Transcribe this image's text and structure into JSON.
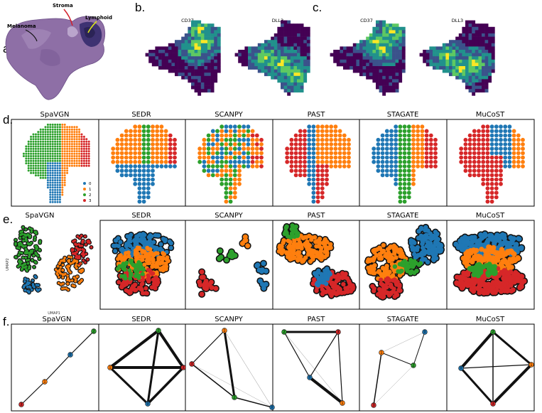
{
  "panel_labels": {
    "a": "a.",
    "b": "b.",
    "c": "c.",
    "d": "d.",
    "e": "e.",
    "f": "f."
  },
  "panel_a": {
    "annotations": {
      "melanoma": "Melanoma",
      "stroma": "Stroma",
      "lymphoid": "Lymphoid"
    },
    "colors": {
      "tissue": "#8e6fa6",
      "tissue_light": "#b9a2c9",
      "lymphoid": "#3e3272",
      "stroma_arrow": "#d21f2b",
      "lymphoid_arrow": "#d9e21a",
      "melanoma_arrow": "#111111"
    }
  },
  "panel_b": {
    "genes": [
      "CD37",
      "DLL3"
    ]
  },
  "panel_c": {
    "genes": [
      "CD37",
      "DLL3"
    ]
  },
  "heatmap_colors": [
    "#440154",
    "#3b528b",
    "#21918c",
    "#5ec962",
    "#fde725"
  ],
  "methods": [
    "SpaVGN",
    "SEDR",
    "SCANPY",
    "PAST",
    "STAGATE",
    "MuCoST"
  ],
  "cluster_colors": [
    "#1f77b4",
    "#ff7f0e",
    "#2ca02c",
    "#d62728"
  ],
  "legend": {
    "labels": [
      "0",
      "1",
      "2",
      "3"
    ]
  },
  "umap_axes": {
    "x": "UMAP1",
    "y": "UMAP2"
  },
  "graphs": {
    "SpaVGN": {
      "nodes": [
        "3",
        "1",
        "0",
        "2"
      ],
      "edges": [
        [
          0,
          1,
          1.2
        ],
        [
          1,
          2,
          1.2
        ],
        [
          2,
          3,
          1.2
        ]
      ]
    },
    "SEDR": {
      "nodes": [
        "2",
        "1",
        "3",
        "0"
      ],
      "edges": [
        [
          0,
          1,
          4
        ],
        [
          0,
          2,
          4
        ],
        [
          0,
          3,
          3
        ],
        [
          1,
          2,
          4
        ],
        [
          1,
          3,
          3
        ],
        [
          2,
          3,
          3.5
        ]
      ]
    },
    "SCANPY": {
      "nodes": [
        "1",
        "3",
        "2",
        "0"
      ],
      "edges": [
        [
          0,
          1,
          1.2
        ],
        [
          0,
          2,
          3
        ],
        [
          0,
          3,
          0.5
        ],
        [
          1,
          2,
          1.5
        ],
        [
          1,
          3,
          0.4
        ],
        [
          2,
          3,
          1.5
        ]
      ]
    },
    "PAST": {
      "nodes": [
        "2",
        "3",
        "0",
        "1"
      ],
      "edges": [
        [
          0,
          1,
          3
        ],
        [
          0,
          2,
          1.2
        ],
        [
          0,
          3,
          0.5
        ],
        [
          1,
          2,
          1.2
        ],
        [
          1,
          3,
          1.2
        ],
        [
          2,
          3,
          4
        ]
      ]
    },
    "STAGATE": {
      "nodes": [
        "0",
        "1",
        "2",
        "3"
      ],
      "edges": [
        [
          0,
          1,
          0.4
        ],
        [
          0,
          2,
          1
        ],
        [
          1,
          2,
          1
        ],
        [
          1,
          3,
          1.5
        ],
        [
          2,
          3,
          0.4
        ]
      ]
    },
    "MuCoST": {
      "nodes": [
        "2",
        "0",
        "1",
        "3"
      ],
      "edges": [
        [
          0,
          1,
          4
        ],
        [
          0,
          2,
          3
        ],
        [
          0,
          3,
          1.5
        ],
        [
          1,
          2,
          1.2
        ],
        [
          1,
          3,
          3
        ],
        [
          2,
          3,
          4
        ]
      ]
    }
  }
}
